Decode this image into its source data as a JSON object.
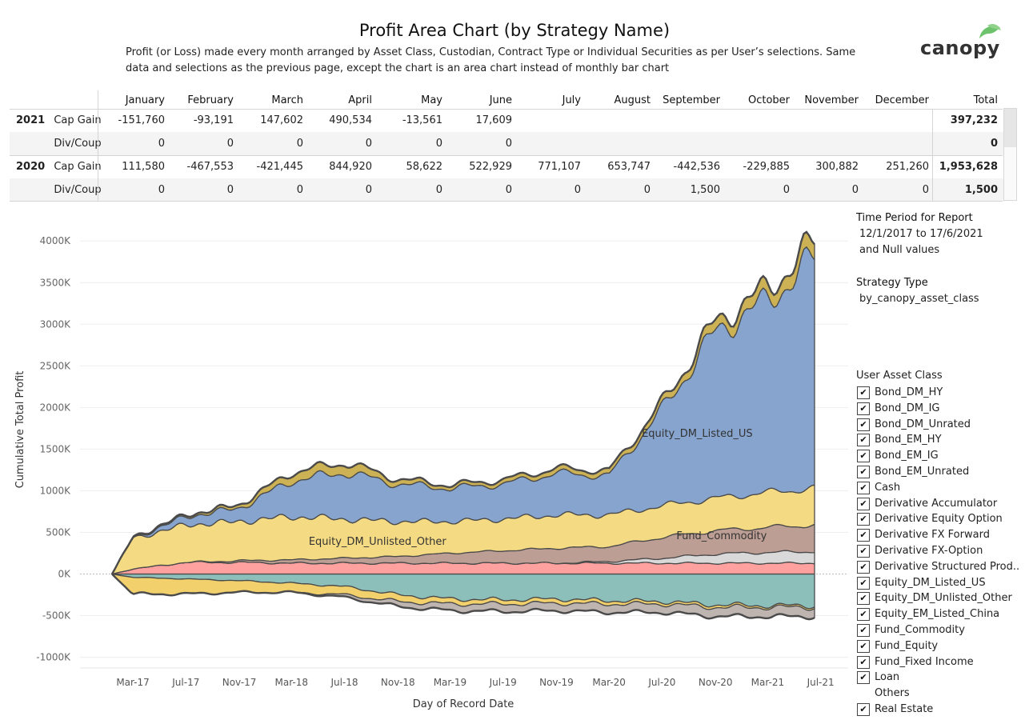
{
  "header": {
    "title": "Profit Area Chart (by Strategy Name)",
    "subtitle": "Profit (or Loss) made every month arranged by Asset Class, Custodian, Contract Type or Individual Securities as per User’s selections. Same data and selections as the previous page, except the chart is an area chart instead of monthly bar chart",
    "logo_text": "canopy"
  },
  "table": {
    "months": [
      "January",
      "February",
      "March",
      "April",
      "May",
      "June",
      "July",
      "August",
      "September",
      "October",
      "November",
      "December"
    ],
    "total_label": "Total",
    "years": [
      {
        "year": "2021",
        "rows": [
          {
            "label": "Cap Gain",
            "values": [
              "-151,760",
              "-93,191",
              "147,602",
              "490,534",
              "-13,561",
              "17,609",
              "",
              "",
              "",
              "",
              "",
              ""
            ],
            "total": "397,232"
          },
          {
            "label": "Div/Coup",
            "values": [
              "0",
              "0",
              "0",
              "0",
              "0",
              "0",
              "",
              "",
              "",
              "",
              "",
              ""
            ],
            "total": "0"
          }
        ]
      },
      {
        "year": "2020",
        "rows": [
          {
            "label": "Cap Gain",
            "values": [
              "111,580",
              "-467,553",
              "-421,445",
              "844,920",
              "58,622",
              "522,929",
              "771,107",
              "653,747",
              "-442,536",
              "-229,885",
              "300,882",
              "251,260"
            ],
            "total": "1,953,628"
          },
          {
            "label": "Div/Coup",
            "values": [
              "0",
              "0",
              "0",
              "0",
              "0",
              "0",
              "0",
              "0",
              "1,500",
              "0",
              "0",
              "0"
            ],
            "total": "1,500"
          }
        ]
      }
    ]
  },
  "chart_data": {
    "type": "area",
    "title": "",
    "xlabel": "Day of Record Date",
    "ylabel": "Cumulative Total Profit",
    "x_ticks": [
      "Mar-17",
      "Jul-17",
      "Nov-17",
      "Mar-18",
      "Jul-18",
      "Nov-18",
      "Mar-19",
      "Jul-19",
      "Nov-19",
      "Mar-20",
      "Jul-20",
      "Nov-20",
      "Mar-21",
      "Jul-21"
    ],
    "y_ticks": [
      "4000K",
      "3500K",
      "3000K",
      "2500K",
      "2000K",
      "1500K",
      "1000K",
      "500K",
      "0K",
      "-500K",
      "-1000K"
    ],
    "ylim": [
      -1100,
      4300
    ],
    "y_unit": "K",
    "x_range": [
      "2017-01-12",
      "2021-06-17"
    ],
    "grid": true,
    "annotations": [
      {
        "text": "Equity_DM_Listed_US",
        "x": "2020-09-20",
        "y": 1650
      },
      {
        "text": "Equity_DM_Unlisted_Other",
        "x": "2018-09-15",
        "y": 350
      },
      {
        "text": "Fund_Commodity",
        "x": "2020-11-15",
        "y": 420
      }
    ],
    "series": [
      {
        "name": "Equity_EM_Listed_China",
        "color": "#86bcb6",
        "side": "negative",
        "dates": [
          "2017-01-12",
          "2017-03-01",
          "2017-07-01",
          "2017-11-01",
          "2018-03-01",
          "2018-07-01",
          "2018-11-01",
          "2019-03-01",
          "2019-07-01",
          "2019-11-01",
          "2020-03-01",
          "2020-07-01",
          "2020-11-01",
          "2021-03-01",
          "2021-06-17"
        ],
        "values": [
          0,
          -40,
          -60,
          -80,
          -110,
          -150,
          -250,
          -300,
          -310,
          -300,
          -320,
          -330,
          -370,
          -380,
          -380
        ]
      },
      {
        "name": "Bond_EM_HY",
        "color": "#f1ce63",
        "side": "negative",
        "dates": [
          "2017-01-12",
          "2017-03-01",
          "2017-07-01",
          "2017-11-01",
          "2018-03-01",
          "2018-07-01",
          "2018-11-01",
          "2019-03-01",
          "2019-07-01",
          "2019-11-01",
          "2020-03-01",
          "2020-07-01",
          "2020-11-01",
          "2021-03-01",
          "2021-06-17"
        ],
        "values": [
          0,
          -200,
          -180,
          -140,
          -110,
          -100,
          -80,
          -60,
          -50,
          -50,
          -40,
          -30,
          -30,
          -20,
          -20
        ]
      },
      {
        "name": "Derivative FX Forward",
        "color": "#bab0ac",
        "side": "negative",
        "dates": [
          "2017-01-12",
          "2017-03-01",
          "2017-07-01",
          "2017-11-01",
          "2018-03-01",
          "2018-07-01",
          "2018-11-01",
          "2019-03-01",
          "2019-07-01",
          "2019-11-01",
          "2020-03-01",
          "2020-07-01",
          "2020-11-01",
          "2021-03-01",
          "2021-06-17"
        ],
        "values": [
          0,
          0,
          0,
          0,
          0,
          -30,
          -60,
          -80,
          -90,
          -90,
          -100,
          -100,
          -110,
          -110,
          -110
        ]
      },
      {
        "name": "Derivative Accumulator",
        "color": "#ff9d9a",
        "side": "positive",
        "dates": [
          "2017-01-12",
          "2017-03-01",
          "2017-07-01",
          "2017-11-01",
          "2018-03-01",
          "2018-07-01",
          "2018-11-01",
          "2019-03-01",
          "2019-07-01",
          "2019-11-01",
          "2020-03-01",
          "2020-07-01",
          "2020-11-01",
          "2021-03-01",
          "2021-06-17"
        ],
        "values": [
          0,
          60,
          140,
          140,
          130,
          130,
          130,
          130,
          130,
          130,
          130,
          130,
          130,
          130,
          130
        ]
      },
      {
        "name": "Others",
        "color": "#d7d7d7",
        "side": "positive",
        "dates": [
          "2017-01-12",
          "2017-03-01",
          "2017-07-01",
          "2017-11-01",
          "2018-03-01",
          "2018-07-01",
          "2018-11-01",
          "2019-03-01",
          "2019-07-01",
          "2019-11-01",
          "2020-03-01",
          "2020-07-01",
          "2020-11-01",
          "2021-03-01",
          "2021-06-17"
        ],
        "values": [
          0,
          0,
          0,
          0,
          0,
          0,
          0,
          0,
          0,
          0,
          20,
          60,
          110,
          130,
          140
        ]
      },
      {
        "name": "Fund_Commodity",
        "color": "#b9998e",
        "side": "positive",
        "dates": [
          "2017-01-12",
          "2017-03-01",
          "2017-07-01",
          "2017-11-01",
          "2018-03-01",
          "2018-07-01",
          "2018-11-01",
          "2019-03-01",
          "2019-07-01",
          "2019-11-01",
          "2020-03-01",
          "2020-07-01",
          "2020-11-01",
          "2021-03-01",
          "2021-06-17"
        ],
        "values": [
          0,
          0,
          0,
          20,
          40,
          60,
          80,
          120,
          150,
          180,
          180,
          250,
          280,
          300,
          320
        ]
      },
      {
        "name": "Equity_DM_Unlisted_Other",
        "color": "#f3d87b",
        "side": "positive",
        "dates": [
          "2017-01-12",
          "2017-03-01",
          "2017-07-01",
          "2017-11-01",
          "2018-03-01",
          "2018-07-01",
          "2018-11-01",
          "2019-03-01",
          "2019-07-01",
          "2019-11-01",
          "2020-03-01",
          "2020-07-01",
          "2020-11-01",
          "2021-03-01",
          "2021-06-17"
        ],
        "values": [
          0,
          370,
          450,
          470,
          520,
          470,
          420,
          380,
          380,
          400,
          380,
          380,
          390,
          420,
          440
        ]
      },
      {
        "name": "Equity_DM_Listed_US",
        "color": "#7f9fca",
        "side": "positive",
        "dates": [
          "2017-01-12",
          "2017-03-01",
          "2017-07-01",
          "2017-11-01",
          "2018-03-01",
          "2018-07-01",
          "2018-11-01",
          "2019-03-01",
          "2019-07-01",
          "2019-11-01",
          "2020-03-01",
          "2020-07-01",
          "2020-11-01",
          "2021-03-01",
          "2021-06-17"
        ],
        "values": [
          0,
          0,
          100,
          160,
          430,
          560,
          450,
          400,
          420,
          500,
          470,
          1150,
          2000,
          2300,
          2750
        ]
      },
      {
        "name": "Fund_Equity",
        "color": "#c9ae4c",
        "side": "positive",
        "dates": [
          "2017-01-12",
          "2017-03-01",
          "2017-07-01",
          "2017-11-01",
          "2018-03-01",
          "2018-07-01",
          "2018-11-01",
          "2019-03-01",
          "2019-07-01",
          "2019-11-01",
          "2020-03-01",
          "2020-07-01",
          "2020-11-01",
          "2021-03-01",
          "2021-06-17"
        ],
        "values": [
          0,
          10,
          20,
          40,
          100,
          120,
          60,
          40,
          50,
          60,
          60,
          80,
          120,
          150,
          190
        ]
      }
    ]
  },
  "panel": {
    "time_period_title": "Time Period for Report",
    "time_period_value": "12/1/2017 to 17/6/2021",
    "time_period_null": "and Null values",
    "strategy_title": "Strategy Type",
    "strategy_value": "by_canopy_asset_class",
    "asset_class_title": "User Asset Class",
    "asset_classes": [
      {
        "label": "Bond_DM_HY",
        "checked": true
      },
      {
        "label": "Bond_DM_IG",
        "checked": true
      },
      {
        "label": "Bond_DM_Unrated",
        "checked": true
      },
      {
        "label": "Bond_EM_HY",
        "checked": true
      },
      {
        "label": "Bond_EM_IG",
        "checked": true
      },
      {
        "label": "Bond_EM_Unrated",
        "checked": true
      },
      {
        "label": "Cash",
        "checked": true
      },
      {
        "label": "Derivative Accumulator",
        "checked": true
      },
      {
        "label": "Derivative Equity Option",
        "checked": true
      },
      {
        "label": "Derivative FX Forward",
        "checked": true
      },
      {
        "label": "Derivative FX-Option",
        "checked": true
      },
      {
        "label": "Derivative Structured Prod..",
        "checked": true
      },
      {
        "label": "Equity_DM_Listed_US",
        "checked": true
      },
      {
        "label": "Equity_DM_Unlisted_Other",
        "checked": true
      },
      {
        "label": "Equity_EM_Listed_China",
        "checked": true
      },
      {
        "label": "Fund_Commodity",
        "checked": true
      },
      {
        "label": "Fund_Equity",
        "checked": true
      },
      {
        "label": "Fund_Fixed Income",
        "checked": true
      },
      {
        "label": "Loan",
        "checked": true
      },
      {
        "label": "Others",
        "checked": false
      },
      {
        "label": "Real Estate",
        "checked": true
      }
    ]
  },
  "colors": {
    "outline": "#4a4a4a",
    "grid": "#eeeeee",
    "logo_leaf": "#6cc36b"
  }
}
